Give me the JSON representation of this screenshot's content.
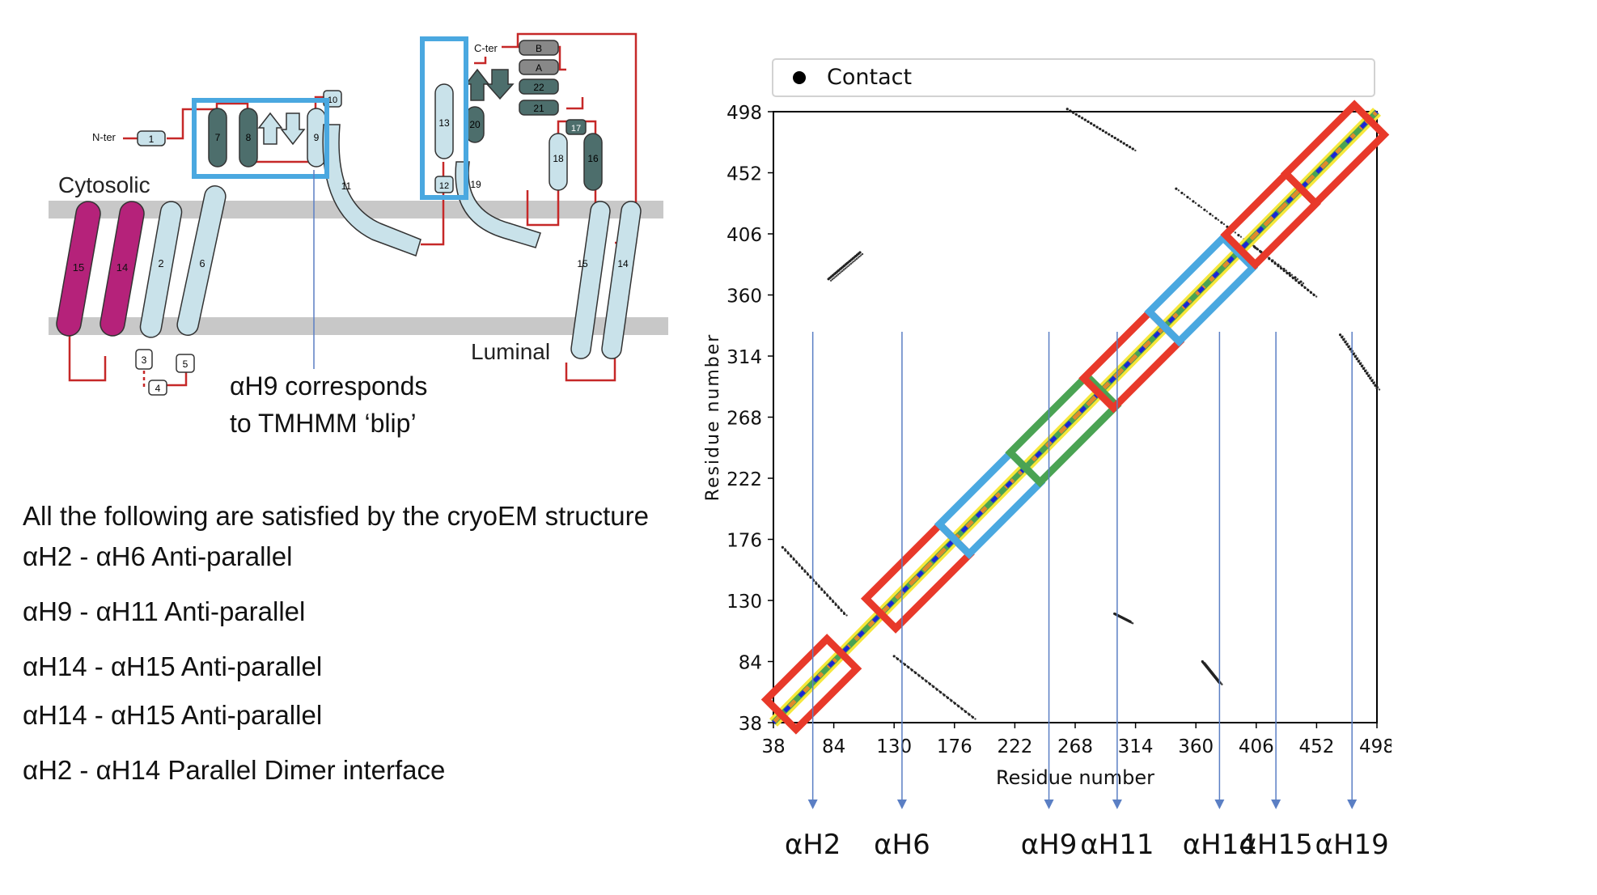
{
  "topology": {
    "n_ter": "N-ter",
    "c_ter": "C-ter",
    "cytosolic": "Cytosolic",
    "luminal": "Luminal",
    "elements": [
      "1",
      "2",
      "3",
      "4",
      "5",
      "6",
      "7",
      "8",
      "9",
      "10",
      "11",
      "12",
      "13",
      "14",
      "15",
      "16",
      "17",
      "18",
      "19",
      "20",
      "21",
      "22",
      "A",
      "B"
    ],
    "left_tm": [
      "15",
      "14"
    ],
    "right_tm": [
      "15",
      "14"
    ]
  },
  "annotation": {
    "line1": "αH9 corresponds",
    "line2": "to TMHMM ‘blip’"
  },
  "constraints": {
    "intro": "All the following are satisfied by the cryoEM structure",
    "items": [
      "αH2 - αH6 Anti-parallel",
      "αH9 - αH11 Anti-parallel",
      "αH14 - αH15 Anti-parallel",
      "αH14 - αH15 Anti-parallel",
      "αH2 - αH14 Parallel Dimer interface"
    ]
  },
  "legend": {
    "label": "Contact"
  },
  "colors": {
    "red": "#e8392a",
    "blue": "#4aa8e0",
    "green": "#4aa353",
    "yellow": "#f6e73a",
    "orange": "#e08a2c",
    "contact_blue": "#1a26d6",
    "arrow": "#5b7fc4",
    "membrane": "#c8c8c8",
    "loop": "#c62828",
    "magenta": "#b5227a",
    "light_helix": "#c9e2ea",
    "dark_helix": "#4d6e6c"
  },
  "chart_data": {
    "type": "scatter",
    "xlabel": "Residue number",
    "ylabel": "Residue number",
    "xlim": [
      38,
      498
    ],
    "ylim": [
      38,
      498
    ],
    "ticks": [
      38,
      84,
      130,
      176,
      222,
      268,
      314,
      360,
      406,
      452,
      498
    ],
    "series": [
      {
        "name": "Contact"
      }
    ],
    "diagonal_boxes": [
      {
        "color": "red",
        "range": [
          44,
          90
        ]
      },
      {
        "color": "red",
        "range": [
          120,
          176
        ]
      },
      {
        "color": "blue",
        "range": [
          176,
          230
        ]
      },
      {
        "color": "green",
        "range": [
          230,
          288
        ]
      },
      {
        "color": "red",
        "range": [
          286,
          336
        ]
      },
      {
        "color": "blue",
        "range": [
          336,
          392
        ]
      },
      {
        "color": "red",
        "range": [
          394,
          440
        ]
      },
      {
        "color": "red",
        "range": [
          440,
          492
        ]
      }
    ],
    "offdiagonal_contacts": [
      {
        "x": [
          45,
          92
        ],
        "y": [
          170,
          120
        ]
      },
      {
        "x": [
          130,
          190
        ],
        "y": [
          88,
          42
        ]
      },
      {
        "x": [
          262,
          312
        ],
        "y": [
          500,
          470
        ]
      },
      {
        "x": [
          345,
          440
        ],
        "y": [
          440,
          370
        ]
      },
      {
        "x": [
          400,
          450
        ],
        "y": [
          400,
          360
        ]
      },
      {
        "x": [
          80,
          104
        ],
        "y": [
          372,
          392
        ]
      },
      {
        "x": [
          470,
          498
        ],
        "y": [
          330,
          290
        ]
      },
      {
        "x": [
          365,
          378
        ],
        "y": [
          84,
          68
        ]
      },
      {
        "x": [
          298,
          310
        ],
        "y": [
          120,
          114
        ]
      }
    ],
    "helix_arrows": [
      {
        "label": "αH2",
        "x": 68
      },
      {
        "label": "αH6",
        "x": 136
      },
      {
        "label": "αH9",
        "x": 248
      },
      {
        "label": "αH11",
        "x": 300
      },
      {
        "label": "αH14",
        "x": 378
      },
      {
        "label": "αH15",
        "x": 421
      },
      {
        "label": "αH19",
        "x": 479
      }
    ]
  }
}
